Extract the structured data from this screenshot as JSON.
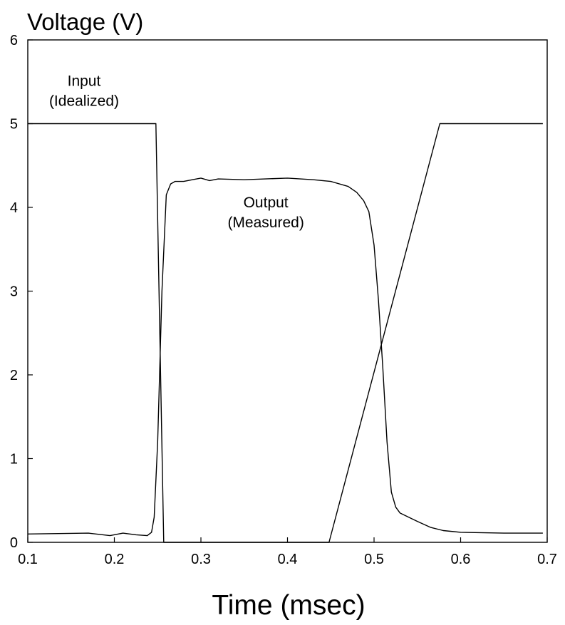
{
  "chart_data": {
    "type": "line",
    "xlabel": "Time (msec)",
    "ylabel": "Voltage (V)",
    "xlim": [
      0.1,
      0.7
    ],
    "ylim": [
      0,
      6
    ],
    "xticks": [
      0.1,
      0.2,
      0.3,
      0.4,
      0.5,
      0.6,
      0.7
    ],
    "yticks": [
      0,
      1,
      2,
      3,
      4,
      5,
      6
    ],
    "grid": false,
    "legend": "none",
    "series": [
      {
        "name": "Input (Idealized)",
        "x": [
          0.1,
          0.248,
          0.257,
          0.448,
          0.576,
          0.695
        ],
        "y": [
          5.0,
          5.0,
          0.0,
          0.0,
          5.0,
          5.0
        ]
      },
      {
        "name": "Output (Measured)",
        "x": [
          0.1,
          0.17,
          0.195,
          0.21,
          0.225,
          0.238,
          0.243,
          0.246,
          0.25,
          0.255,
          0.26,
          0.265,
          0.27,
          0.28,
          0.29,
          0.3,
          0.31,
          0.32,
          0.35,
          0.4,
          0.43,
          0.45,
          0.47,
          0.48,
          0.488,
          0.494,
          0.5,
          0.505,
          0.51,
          0.515,
          0.52,
          0.525,
          0.53,
          0.54,
          0.55,
          0.565,
          0.58,
          0.6,
          0.65,
          0.695
        ],
        "y": [
          0.1,
          0.11,
          0.08,
          0.11,
          0.09,
          0.08,
          0.12,
          0.3,
          1.2,
          3.0,
          4.15,
          4.28,
          4.31,
          4.31,
          4.33,
          4.35,
          4.32,
          4.34,
          4.33,
          4.35,
          4.33,
          4.31,
          4.25,
          4.18,
          4.08,
          3.95,
          3.55,
          2.9,
          2.1,
          1.2,
          0.6,
          0.42,
          0.35,
          0.3,
          0.25,
          0.18,
          0.14,
          0.12,
          0.11,
          0.11
        ]
      }
    ],
    "annotations": [
      {
        "lines": [
          "Input",
          "(Idealized)"
        ],
        "x": 0.165,
        "y": 5.45
      },
      {
        "lines": [
          "Output",
          "(Measured)"
        ],
        "x": 0.375,
        "y": 4.0
      }
    ]
  }
}
